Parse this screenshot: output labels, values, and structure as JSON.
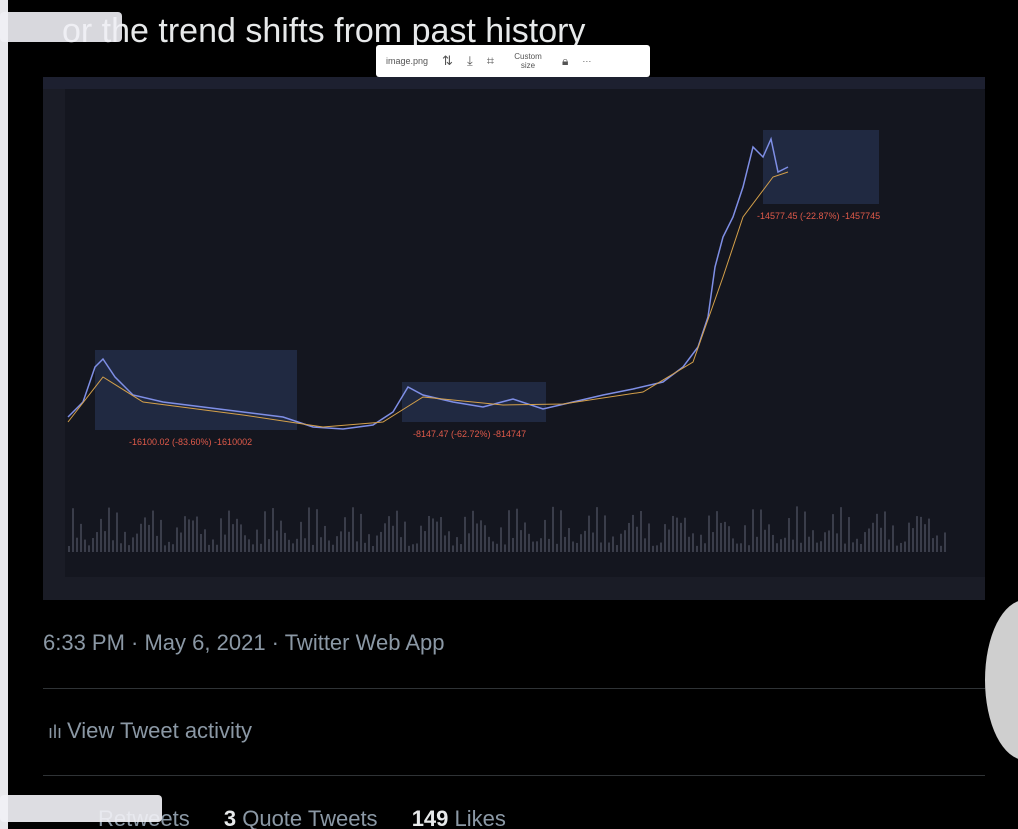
{
  "tweet": {
    "text_fragment": "or the trend shifts from past history",
    "timestamp": "6:33 PM · May 6, 2021 · Twitter Web App",
    "activity": "View Tweet activity",
    "stats": [
      {
        "label": "Retweets"
      },
      {
        "count": 3,
        "label": "Quote Tweets"
      },
      {
        "count": 149,
        "label": "Likes"
      }
    ]
  },
  "image_toolbar": {
    "filename": "image.png",
    "size_button": "Custom size"
  },
  "chart_image": {
    "annotations": [
      "-16100.02 (-83.60%) -1610002",
      "-8147.47 (-62.72%) -814747",
      "-14577.45 (-22.87%) -1457745"
    ]
  }
}
